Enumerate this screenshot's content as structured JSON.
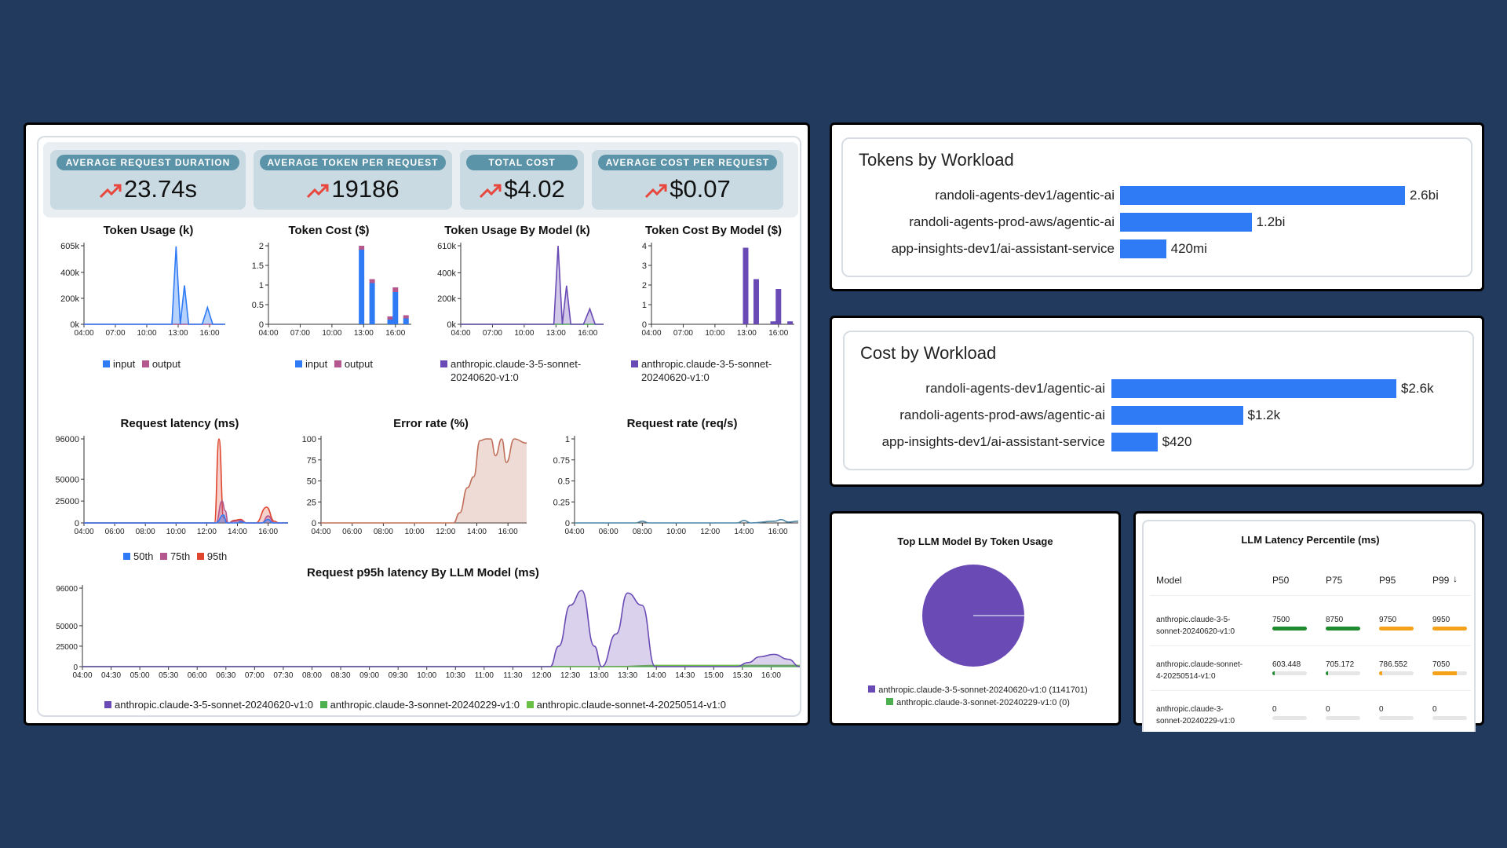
{
  "kpis": [
    {
      "title": "AVERAGE REQUEST DURATION",
      "value": "23.74s",
      "icon": "trend-up-icon"
    },
    {
      "title": "AVERAGE TOKEN PER REQUEST",
      "value": "19186",
      "icon": "trend-up-icon"
    },
    {
      "title": "TOTAL COST",
      "value": "$4.02",
      "icon": "trend-up-icon"
    },
    {
      "title": "AVERAGE COST PER REQUEST",
      "value": "$0.07",
      "icon": "trend-up-icon"
    }
  ],
  "colors": {
    "background": "#233a5f",
    "input": "#2f7bf5",
    "output": "#b5578f",
    "model_purple": "#6a4bb5",
    "model_green": "#4caf50",
    "latency_red": "#e0462e",
    "error_rate": "#c0705a",
    "request_rate": "#4d86a6",
    "bar_blue": "#2f7bf5",
    "good": "#1f8a2e",
    "warn": "#f5a21b"
  },
  "chart_data": [
    {
      "id": "token_usage",
      "type": "area",
      "title": "Token Usage (k)",
      "x_ticks": [
        "04:00",
        "07:00",
        "10:00",
        "13:00",
        "16:00"
      ],
      "y_ticks": [
        "0k",
        "200k",
        "400k",
        "605k"
      ],
      "ylim": [
        0,
        605
      ],
      "x_range": [
        4,
        17.5
      ],
      "series": [
        {
          "name": "input",
          "x": [
            4,
            11.5,
            12.4,
            12.8,
            13.2,
            13.6,
            14.0,
            14.4,
            15.3,
            15.8,
            16.3,
            17.5
          ],
          "values": [
            0,
            0,
            0,
            600,
            0,
            300,
            0,
            0,
            0,
            130,
            0,
            0
          ]
        },
        {
          "name": "output",
          "x": [
            4,
            17.5
          ],
          "values": [
            0,
            0
          ]
        }
      ],
      "legend": [
        "input",
        "output"
      ]
    },
    {
      "id": "token_cost",
      "type": "bar",
      "title": "Token Cost ($)",
      "x_ticks": [
        "04:00",
        "07:00",
        "10:00",
        "13:00",
        "16:00"
      ],
      "y_ticks": [
        "0",
        "0.5",
        "1",
        "1.5",
        "2"
      ],
      "ylim": [
        0,
        2
      ],
      "x_range": [
        4,
        17.5
      ],
      "bars": [
        {
          "x": 12.8,
          "input": 1.9,
          "output": 0.1
        },
        {
          "x": 13.8,
          "input": 1.05,
          "output": 0.1
        },
        {
          "x": 15.5,
          "input": 0.12,
          "output": 0.08
        },
        {
          "x": 16.0,
          "input": 0.82,
          "output": 0.12
        },
        {
          "x": 17.0,
          "input": 0.15,
          "output": 0.08
        }
      ],
      "legend": [
        "input",
        "output"
      ]
    },
    {
      "id": "token_usage_by_model",
      "type": "area",
      "title": "Token Usage By Model (k)",
      "x_ticks": [
        "04:00",
        "07:00",
        "10:00",
        "13:00",
        "16:00"
      ],
      "y_ticks": [
        "0k",
        "200k",
        "400k",
        "610k"
      ],
      "ylim": [
        0,
        610
      ],
      "x_range": [
        4,
        17.5
      ],
      "series": [
        {
          "name": "anthropic.claude-3-5-sonnet-20240620-v1:0",
          "x": [
            4,
            12.3,
            12.8,
            13.2,
            13.6,
            14.0,
            14.4,
            15.6,
            16.2,
            16.7,
            17.5
          ],
          "values": [
            0,
            0,
            0,
            610,
            0,
            300,
            0,
            0,
            120,
            0,
            0
          ]
        },
        {
          "name": "anthropic.claude-3-sonnet-20240229-v1:0",
          "x": [
            4,
            17.5
          ],
          "values": [
            0,
            0
          ]
        }
      ],
      "legend": [
        "anthropic.claude-3-5-sonnet-20240620-v1:0"
      ]
    },
    {
      "id": "token_cost_by_model",
      "type": "bar",
      "title": "Token Cost By Model ($)",
      "x_ticks": [
        "04:00",
        "07:00",
        "10:00",
        "13:00",
        "16:00"
      ],
      "y_ticks": [
        "0",
        "1",
        "2",
        "3",
        "4"
      ],
      "ylim": [
        0,
        4
      ],
      "x_range": [
        4,
        17.5
      ],
      "bars": [
        {
          "x": 12.9,
          "value": 3.9
        },
        {
          "x": 13.9,
          "value": 2.3
        },
        {
          "x": 15.5,
          "value": 0.15
        },
        {
          "x": 16.0,
          "value": 1.8
        },
        {
          "x": 17.1,
          "value": 0.15
        }
      ],
      "legend": [
        "anthropic.claude-3-5-sonnet-20240620-v1:0"
      ]
    },
    {
      "id": "request_latency",
      "type": "area",
      "title": "Request latency (ms)",
      "x_ticks": [
        "04:00",
        "06:00",
        "08:00",
        "10:00",
        "12:00",
        "14:00",
        "16:00"
      ],
      "y_ticks": [
        "0",
        "25000",
        "50000",
        "96000"
      ],
      "ylim": [
        0,
        96000
      ],
      "x_range": [
        4,
        17.3
      ],
      "series": [
        {
          "name": "50th",
          "x": [
            4,
            12.2,
            12.6,
            13.1,
            13.3,
            14.0,
            14.2,
            14.5,
            15.6,
            16.0,
            16.3,
            17.3
          ],
          "values": [
            0,
            0,
            0,
            9000,
            0,
            0,
            1500,
            0,
            0,
            4000,
            0,
            0
          ]
        },
        {
          "name": "75th",
          "x": [
            4,
            12.2,
            12.6,
            13.0,
            13.2,
            13.4,
            13.8,
            14.2,
            14.6,
            15.6,
            16.0,
            16.4,
            17.3
          ],
          "values": [
            0,
            0,
            0,
            25000,
            14000,
            0,
            2000,
            3000,
            0,
            0,
            8000,
            0,
            0
          ]
        },
        {
          "name": "95th",
          "x": [
            4,
            12.2,
            12.5,
            12.8,
            13.1,
            13.4,
            13.8,
            14.2,
            14.6,
            15.2,
            15.9,
            16.4,
            16.7,
            17.3
          ],
          "values": [
            0,
            0,
            0,
            96000,
            6000,
            0,
            3000,
            4000,
            0,
            0,
            18000,
            2000,
            0,
            0
          ]
        }
      ],
      "legend": [
        "50th",
        "75th",
        "95th"
      ]
    },
    {
      "id": "error_rate",
      "type": "area",
      "title": "Error rate (%)",
      "x_ticks": [
        "04:00",
        "06:00",
        "08:00",
        "10:00",
        "12:00",
        "14:00",
        "16:00"
      ],
      "y_ticks": [
        "0",
        "25",
        "50",
        "75",
        "100"
      ],
      "ylim": [
        0,
        100
      ],
      "x_range": [
        4,
        17.2
      ],
      "series": [
        {
          "name": "error_rate",
          "x": [
            4,
            12.5,
            12.9,
            13.4,
            13.8,
            14.2,
            14.6,
            14.9,
            15.2,
            15.6,
            15.9,
            16.4,
            17.2
          ],
          "values": [
            0,
            0,
            12,
            42,
            55,
            98,
            100,
            100,
            80,
            100,
            72,
            100,
            95
          ]
        }
      ]
    },
    {
      "id": "request_rate",
      "type": "line",
      "title": "Request rate (req/s)",
      "x_ticks": [
        "04:00",
        "06:00",
        "08:00",
        "10:00",
        "12:00",
        "14:00",
        "16:00"
      ],
      "y_ticks": [
        "0",
        "0.25",
        "0.5",
        "0.75",
        "1"
      ],
      "ylim": [
        0,
        1
      ],
      "x_range": [
        4,
        17.2
      ],
      "series": [
        {
          "name": "request_rate",
          "x": [
            4,
            7.6,
            8.0,
            8.4,
            12,
            13.6,
            14.0,
            14.4,
            15.8,
            16.2,
            16.6,
            17.2
          ],
          "values": [
            0,
            0,
            0.02,
            0,
            0,
            0,
            0.03,
            0,
            0.02,
            0.04,
            0.01,
            0.02
          ]
        }
      ]
    },
    {
      "id": "p95_latency_by_model",
      "type": "area",
      "title": "Request p95h latency By LLM Model (ms)",
      "x_ticks": [
        "04:00",
        "04:30",
        "05:00",
        "05:30",
        "06:00",
        "06:30",
        "07:00",
        "07:30",
        "08:00",
        "08:30",
        "09:00",
        "09:30",
        "10:00",
        "10:30",
        "11:00",
        "11:30",
        "12:00",
        "12:30",
        "13:00",
        "13:30",
        "14:00",
        "14:30",
        "15:00",
        "15:30",
        "16:00"
      ],
      "y_ticks": [
        "0",
        "25000",
        "50000",
        "96000"
      ],
      "ylim": [
        0,
        96000
      ],
      "x_range": [
        4,
        16.5
      ],
      "series": [
        {
          "name": "anthropic.claude-3-5-sonnet-20240620-v1:0",
          "x": [
            4,
            12.15,
            12.3,
            12.5,
            12.7,
            12.92,
            13.05,
            13.3,
            13.5,
            13.75,
            13.98,
            15.4,
            15.6,
            15.8,
            16.05,
            16.3,
            16.5
          ],
          "values": [
            0,
            0,
            25000,
            75000,
            93000,
            25000,
            0,
            40000,
            90000,
            75000,
            0,
            0,
            5000,
            12000,
            15000,
            9000,
            0
          ]
        },
        {
          "name": "anthropic.claude-3-sonnet-20240229-v1:0",
          "x": [
            4,
            16.5
          ],
          "values": [
            0,
            0
          ]
        },
        {
          "name": "anthropic.claude-sonnet-4-20250514-v1:0",
          "x": [
            4,
            13.3,
            14.0,
            16.5
          ],
          "values": [
            0,
            0,
            1500,
            1500
          ]
        }
      ],
      "legend": [
        "anthropic.claude-3-5-sonnet-20240620-v1:0",
        "anthropic.claude-3-sonnet-20240229-v1:0",
        "anthropic.claude-sonnet-4-20250514-v1:0"
      ]
    },
    {
      "id": "top_llm_by_token_usage",
      "type": "pie",
      "title": "Top LLM Model By Token Usage",
      "slices": [
        {
          "name": "anthropic.claude-3-5-sonnet-20240620-v1:0 (1141701)",
          "value": 1141701
        },
        {
          "name": "anthropic.claude-3-sonnet-20240229-v1:0 (0)",
          "value": 0
        }
      ]
    },
    {
      "id": "tokens_by_workload",
      "type": "bar",
      "title": "Tokens by Workload",
      "categories": [
        "randoli-agents-dev1/agentic-ai",
        "randoli-agents-prod-aws/agentic-ai",
        "app-insights-dev1/ai-assistant-service"
      ],
      "values": [
        2600000000,
        1200000000,
        420000000
      ],
      "value_labels": [
        "2.6bi",
        "1.2bi",
        "420mi"
      ]
    },
    {
      "id": "cost_by_workload",
      "type": "bar",
      "title": "Cost by Workload",
      "categories": [
        "randoli-agents-dev1/agentic-ai",
        "randoli-agents-prod-aws/agentic-ai",
        "app-insights-dev1/ai-assistant-service"
      ],
      "values": [
        2600,
        1200,
        420
      ],
      "value_labels": [
        "$2.6k",
        "$1.2k",
        "$420"
      ]
    },
    {
      "id": "llm_latency_percentile",
      "type": "table",
      "title": "LLM Latency Percentile (ms)",
      "columns": [
        "Model",
        "P50",
        "P75",
        "P95",
        "P99"
      ],
      "rows": [
        {
          "model": "anthropic.claude-3-5-sonnet-20240620-v1:0",
          "p50": "7500",
          "p75": "8750",
          "p95": "9750",
          "p99": "9950",
          "levels": [
            1.0,
            1.0,
            1.0,
            1.0
          ],
          "colors": [
            "good",
            "good",
            "warn",
            "warn"
          ]
        },
        {
          "model": "anthropic.claude-sonnet-4-20250514-v1:0",
          "p50": "603.448",
          "p75": "705.172",
          "p95": "786.552",
          "p99": "7050",
          "levels": [
            0.06,
            0.07,
            0.08,
            0.7
          ],
          "colors": [
            "good",
            "good",
            "warn",
            "warn"
          ]
        },
        {
          "model": "anthropic.claude-3-sonnet-20240229-v1:0",
          "p50": "0",
          "p75": "0",
          "p95": "0",
          "p99": "0",
          "levels": [
            0,
            0,
            0,
            0
          ],
          "colors": [
            "good",
            "good",
            "warn",
            "warn"
          ]
        }
      ]
    }
  ],
  "labels": {
    "token_usage_legend": [
      "input",
      "output"
    ],
    "model_legend_line1": "anthropic.claude-3-5-sonnet-",
    "model_legend_line2": "20240620-v1:0",
    "latency_legend": [
      "50th",
      "75th",
      "95th"
    ],
    "p99_sort_icon": "arrow-down-icon",
    "table_rows_display": [
      [
        "anthropic.claude-3-5-",
        "sonnet-20240620-v1:0"
      ],
      [
        "anthropic.claude-sonnet-",
        "4-20250514-v1:0"
      ],
      [
        "anthropic.claude-3-",
        "sonnet-20240229-v1:0"
      ]
    ]
  }
}
